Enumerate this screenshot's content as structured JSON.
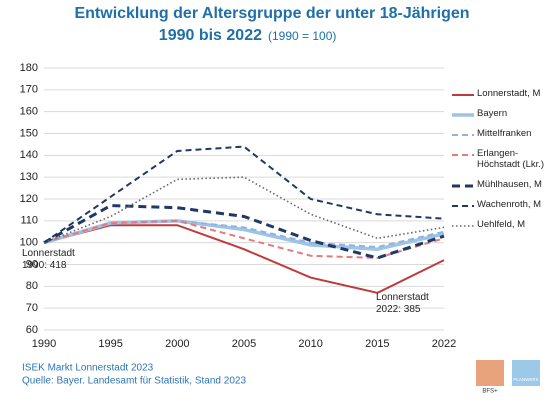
{
  "chart_data": {
    "type": "line",
    "title": "Entwicklung der Altersgruppe der unter 18-Jährigen",
    "subtitle": "1990 bis 2022",
    "subtitle_note": "(1990 = 100)",
    "categories": [
      "1990",
      "1995",
      "2000",
      "2005",
      "2010",
      "2015",
      "2022"
    ],
    "series": [
      {
        "name": "Lonnerstadt, M",
        "color": "#c0393b",
        "style": "solid",
        "values": [
          100,
          108,
          108,
          97,
          84,
          77,
          92
        ]
      },
      {
        "name": "Bayern",
        "color": "#9dc3e6",
        "style": "solid-thick",
        "values": [
          100,
          109,
          110,
          106,
          99,
          97,
          104
        ]
      },
      {
        "name": "Mittelfranken",
        "color": "#8fb4dc",
        "style": "dashed",
        "values": [
          100,
          109,
          110,
          107,
          100,
          98,
          105
        ]
      },
      {
        "name": "Erlangen-Höchstadt (Lkr.)",
        "color": "#e8797a",
        "style": "dashed",
        "values": [
          100,
          109,
          110,
          102,
          94,
          93,
          102
        ]
      },
      {
        "name": "Mühlhausen, M",
        "color": "#1f3864",
        "style": "dashed-thick",
        "values": [
          100,
          117,
          116,
          112,
          101,
          93,
          103
        ]
      },
      {
        "name": "Wachenroth, M",
        "color": "#1f3864",
        "style": "dashed",
        "values": [
          100,
          121,
          142,
          144,
          120,
          113,
          111
        ]
      },
      {
        "name": "Uehlfeld, M",
        "color": "#666666",
        "style": "dotted",
        "values": [
          100,
          112,
          129,
          130,
          113,
          102,
          107
        ]
      }
    ],
    "ylim": [
      60,
      180
    ],
    "yticks": [
      60,
      70,
      80,
      90,
      100,
      110,
      120,
      130,
      140,
      150,
      160,
      170,
      180
    ],
    "grid": true,
    "legend": "right",
    "annotations": [
      [
        "Lonnerstadt",
        "1990: 418"
      ],
      [
        "Lonnerstadt",
        "2022: 385"
      ]
    ],
    "footer": [
      "ISEK Markt Lonnerstadt 2023",
      "Quelle: Bayer. Landesamt für Statistik, Stand 2023"
    ],
    "logos": [
      "BFS+",
      "PLANWERK"
    ]
  }
}
